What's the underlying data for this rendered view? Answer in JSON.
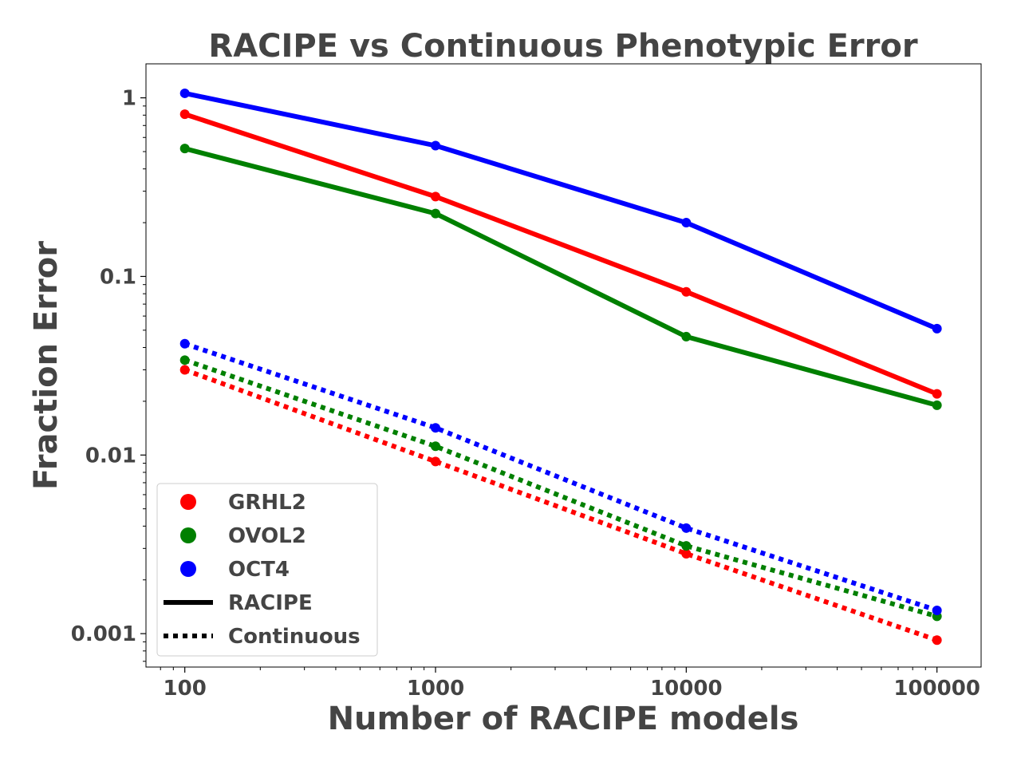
{
  "chart_data": {
    "type": "line",
    "title": "RACIPE vs Continuous Phenotypic Error",
    "xlabel": "Number of RACIPE models",
    "ylabel": "Fraction Error",
    "xscale": "log",
    "yscale": "log",
    "xlim": [
      70,
      150000
    ],
    "ylim": [
      0.00065,
      1.55
    ],
    "x": [
      100,
      1000,
      10000,
      100000
    ],
    "xticks": [
      100,
      1000,
      10000,
      100000
    ],
    "xtick_labels": [
      "100",
      "1000",
      "10000",
      "100000"
    ],
    "yticks": [
      1,
      0.1,
      0.01,
      0.001
    ],
    "ytick_labels": [
      "1",
      "0.1",
      "0.01",
      "0.001"
    ],
    "grid": false,
    "legend_position": "lower-left",
    "series": [
      {
        "group": "GRHL2",
        "method": "RACIPE",
        "color": "#ff0000",
        "linestyle": "solid",
        "values": [
          0.81,
          0.28,
          0.082,
          0.022
        ]
      },
      {
        "group": "OVOL2",
        "method": "RACIPE",
        "color": "#008000",
        "linestyle": "solid",
        "values": [
          0.52,
          0.225,
          0.046,
          0.019
        ]
      },
      {
        "group": "OCT4",
        "method": "RACIPE",
        "color": "#0000ff",
        "linestyle": "solid",
        "values": [
          1.06,
          0.54,
          0.2,
          0.051
        ]
      },
      {
        "group": "GRHL2",
        "method": "Continuous",
        "color": "#ff0000",
        "linestyle": "dotted",
        "values": [
          0.03,
          0.0092,
          0.0028,
          0.00092
        ]
      },
      {
        "group": "OVOL2",
        "method": "Continuous",
        "color": "#008000",
        "linestyle": "dotted",
        "values": [
          0.034,
          0.0112,
          0.0031,
          0.00125
        ]
      },
      {
        "group": "OCT4",
        "method": "Continuous",
        "color": "#0000ff",
        "linestyle": "dotted",
        "values": [
          0.042,
          0.0142,
          0.0039,
          0.00135
        ]
      }
    ],
    "legend": [
      {
        "label": "GRHL2",
        "kind": "marker",
        "color": "#ff0000"
      },
      {
        "label": "OVOL2",
        "kind": "marker",
        "color": "#008000"
      },
      {
        "label": "OCT4",
        "kind": "marker",
        "color": "#0000ff"
      },
      {
        "label": "RACIPE",
        "kind": "line",
        "color": "#000000",
        "linestyle": "solid"
      },
      {
        "label": "Continuous",
        "kind": "line",
        "color": "#000000",
        "linestyle": "dotted"
      }
    ]
  }
}
